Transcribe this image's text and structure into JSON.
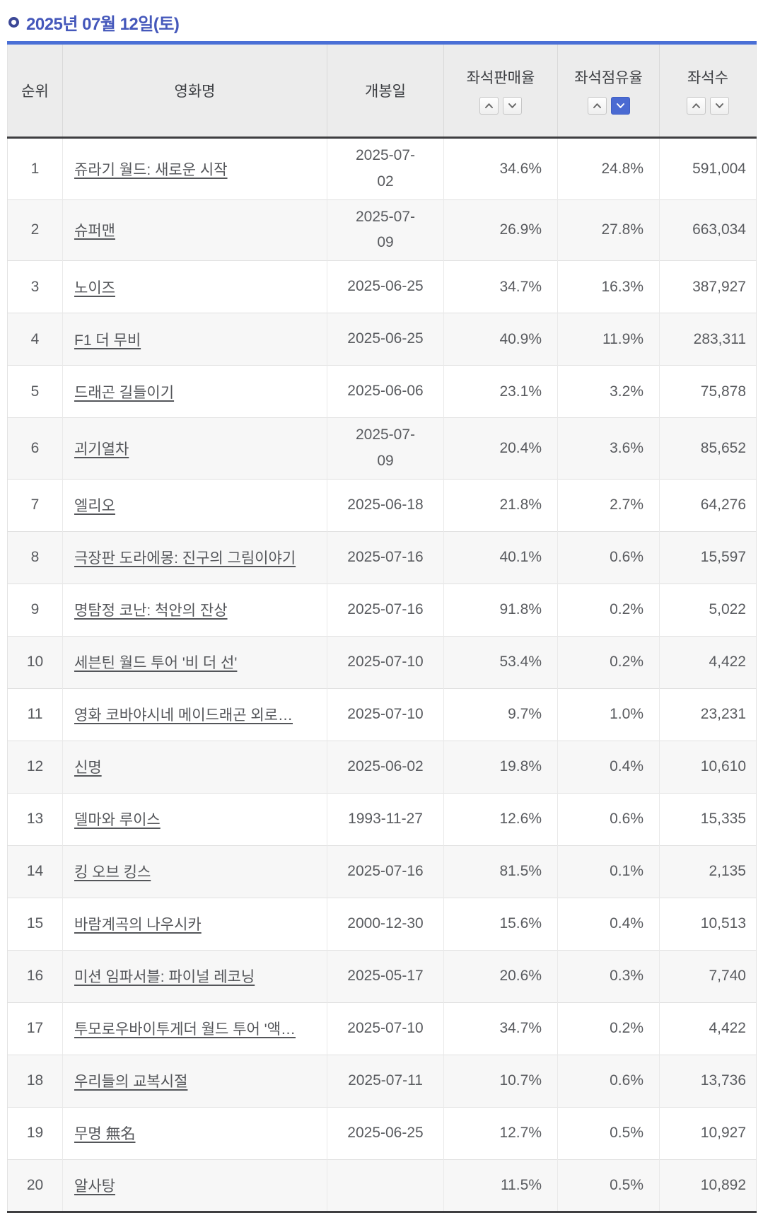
{
  "page": {
    "title": "2025년 07월 12일(토)"
  },
  "colors": {
    "title_text": "#4558bb",
    "table_top_border": "#4a6fd6",
    "header_dark_border": "#3e3e40",
    "active_sort_button": "#4a6ad2",
    "row_alt_background": "#f7f7f7"
  },
  "table": {
    "columns": [
      {
        "key": "rank",
        "label": "순위",
        "sortable": false,
        "sort": null
      },
      {
        "key": "title",
        "label": "영화명",
        "sortable": false,
        "sort": null
      },
      {
        "key": "release",
        "label": "개봉일",
        "sortable": false,
        "sort": null
      },
      {
        "key": "sales",
        "label": "좌석판매율",
        "sortable": true,
        "sort": null
      },
      {
        "key": "share",
        "label": "좌석점유율",
        "sortable": true,
        "sort": "desc"
      },
      {
        "key": "count",
        "label": "좌석수",
        "sortable": true,
        "sort": null
      }
    ],
    "sort_icons": {
      "ascending": "chevron-up-icon",
      "descending": "chevron-down-icon"
    },
    "rows": [
      {
        "rank": "1",
        "title": "쥬라기 월드: 새로운 시작",
        "release": "2025-07-02",
        "release_break": true,
        "sales": "34.6%",
        "share": "24.8%",
        "count": "591,004"
      },
      {
        "rank": "2",
        "title": "슈퍼맨",
        "release": "2025-07-09",
        "release_break": true,
        "sales": "26.9%",
        "share": "27.8%",
        "count": "663,034"
      },
      {
        "rank": "3",
        "title": "노이즈",
        "release": "2025-06-25",
        "release_break": false,
        "sales": "34.7%",
        "share": "16.3%",
        "count": "387,927"
      },
      {
        "rank": "4",
        "title": "F1 더 무비",
        "release": "2025-06-25",
        "release_break": false,
        "sales": "40.9%",
        "share": "11.9%",
        "count": "283,311"
      },
      {
        "rank": "5",
        "title": "드래곤 길들이기",
        "release": "2025-06-06",
        "release_break": false,
        "sales": "23.1%",
        "share": "3.2%",
        "count": "75,878"
      },
      {
        "rank": "6",
        "title": "괴기열차",
        "release": "2025-07-09",
        "release_break": true,
        "sales": "20.4%",
        "share": "3.6%",
        "count": "85,652"
      },
      {
        "rank": "7",
        "title": "엘리오",
        "release": "2025-06-18",
        "release_break": false,
        "sales": "21.8%",
        "share": "2.7%",
        "count": "64,276"
      },
      {
        "rank": "8",
        "title": "극장판 도라에몽: 진구의 그림이야기",
        "release": "2025-07-16",
        "release_break": false,
        "sales": "40.1%",
        "share": "0.6%",
        "count": "15,597"
      },
      {
        "rank": "9",
        "title": "명탐정 코난: 척안의 잔상",
        "release": "2025-07-16",
        "release_break": false,
        "sales": "91.8%",
        "share": "0.2%",
        "count": "5,022"
      },
      {
        "rank": "10",
        "title": "세븐틴 월드 투어 '비 더 선'",
        "release": "2025-07-10",
        "release_break": false,
        "sales": "53.4%",
        "share": "0.2%",
        "count": "4,422"
      },
      {
        "rank": "11",
        "title": "영화 코바야시네 메이드래곤 외로…",
        "release": "2025-07-10",
        "release_break": false,
        "sales": "9.7%",
        "share": "1.0%",
        "count": "23,231"
      },
      {
        "rank": "12",
        "title": "신명",
        "release": "2025-06-02",
        "release_break": false,
        "sales": "19.8%",
        "share": "0.4%",
        "count": "10,610"
      },
      {
        "rank": "13",
        "title": "델마와 루이스",
        "release": "1993-11-27",
        "release_break": false,
        "sales": "12.6%",
        "share": "0.6%",
        "count": "15,335"
      },
      {
        "rank": "14",
        "title": "킹 오브 킹스",
        "release": "2025-07-16",
        "release_break": false,
        "sales": "81.5%",
        "share": "0.1%",
        "count": "2,135"
      },
      {
        "rank": "15",
        "title": "바람계곡의 나우시카",
        "release": "2000-12-30",
        "release_break": false,
        "sales": "15.6%",
        "share": "0.4%",
        "count": "10,513"
      },
      {
        "rank": "16",
        "title": "미션 임파서블: 파이널 레코닝",
        "release": "2025-05-17",
        "release_break": false,
        "sales": "20.6%",
        "share": "0.3%",
        "count": "7,740"
      },
      {
        "rank": "17",
        "title": "투모로우바이투게더 월드 투어 '액…",
        "release": "2025-07-10",
        "release_break": false,
        "sales": "34.7%",
        "share": "0.2%",
        "count": "4,422"
      },
      {
        "rank": "18",
        "title": "우리들의 교복시절",
        "release": "2025-07-11",
        "release_break": false,
        "sales": "10.7%",
        "share": "0.6%",
        "count": "13,736"
      },
      {
        "rank": "19",
        "title": "무명 無名",
        "release": "2025-06-25",
        "release_break": false,
        "sales": "12.7%",
        "share": "0.5%",
        "count": "10,927"
      },
      {
        "rank": "20",
        "title": "알사탕",
        "release": "",
        "release_break": false,
        "sales": "11.5%",
        "share": "0.5%",
        "count": "10,892"
      }
    ]
  }
}
